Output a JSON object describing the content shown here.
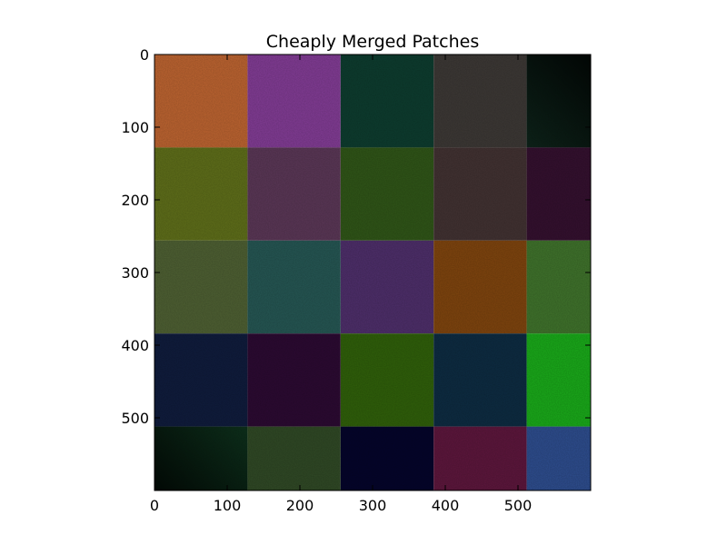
{
  "chart_data": {
    "type": "heatmap",
    "title": "Cheaply Merged Patches",
    "xlabel": "",
    "ylabel": "",
    "xlim": [
      0,
      600
    ],
    "ylim": [
      600,
      0
    ],
    "grid": false,
    "legend": "none",
    "x_ticks": [
      0,
      100,
      200,
      300,
      400,
      500
    ],
    "y_ticks": [
      0,
      100,
      200,
      300,
      400,
      500
    ],
    "x_tick_labels": [
      "0",
      "100",
      "200",
      "300",
      "400",
      "500"
    ],
    "y_tick_labels": [
      "0",
      "100",
      "200",
      "300",
      "400",
      "500"
    ],
    "patch_size": 128,
    "grid_shape": [
      5,
      5
    ],
    "patch_colors": [
      [
        "#b5602f",
        "#7d3a8f",
        "#0d3a2d",
        "#3a3633",
        "#0d2219"
      ],
      [
        "#5b6a19",
        "#573553",
        "#2e5217",
        "#3f3030",
        "#32102d"
      ],
      [
        "#4b5c31",
        "#245350",
        "#4b2d66",
        "#7a420e",
        "#3d6e2a"
      ],
      [
        "#0f1b3a",
        "#2a0a30",
        "#2e5c0a",
        "#0d2a3f",
        "#19a319"
      ],
      [
        "#0d2f1b",
        "#2e4624",
        "#050529",
        "#59163a",
        "#2c4a88"
      ]
    ],
    "gradient_patches": [
      {
        "row": 0,
        "col": 4,
        "dark_corner": "top-right"
      },
      {
        "row": 4,
        "col": 0,
        "dark_corner": "bottom-left"
      }
    ]
  }
}
